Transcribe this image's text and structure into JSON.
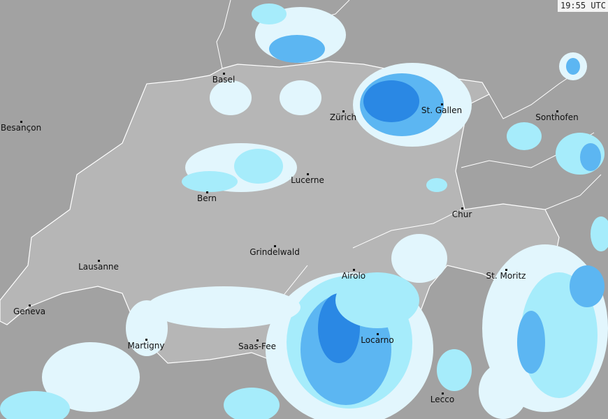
{
  "timestamp": "19:55 UTC",
  "colors": {
    "outside": "#a2a2a2",
    "switzerland": "#b6b6b6",
    "border": "#ffffff",
    "precip_light": "#e2f6fd",
    "precip_cyan": "#a6ecfb",
    "precip_mid": "#5cb6f2",
    "precip_heavy": "#2a88e4"
  },
  "cities": [
    {
      "name": "Basel"
    },
    {
      "name": "Besançon"
    },
    {
      "name": "Zürich"
    },
    {
      "name": "St. Gallen"
    },
    {
      "name": "Sonthofen"
    },
    {
      "name": "Lucerne"
    },
    {
      "name": "Bern"
    },
    {
      "name": "Chur"
    },
    {
      "name": "Grindelwald"
    },
    {
      "name": "Lausanne"
    },
    {
      "name": "Airolo"
    },
    {
      "name": "St. Moritz"
    },
    {
      "name": "Geneva"
    },
    {
      "name": "Martigny"
    },
    {
      "name": "Saas-Fee"
    },
    {
      "name": "Locarno"
    },
    {
      "name": "Lecco"
    }
  ]
}
